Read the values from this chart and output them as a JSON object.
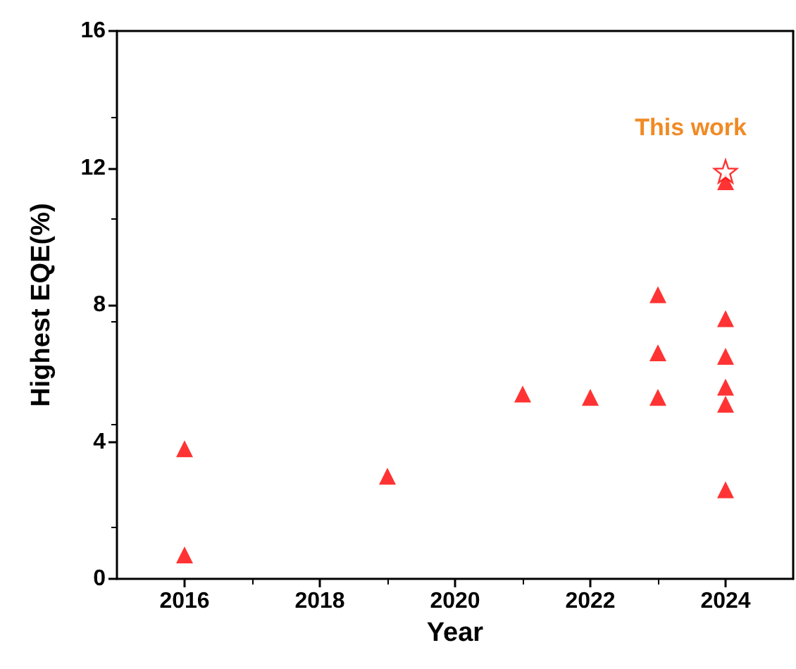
{
  "chart_data": {
    "type": "scatter",
    "xlabel": "Year",
    "ylabel": "Highest EQE(%)",
    "xlim": [
      2015,
      2025
    ],
    "xticks": [
      2016,
      2018,
      2020,
      2022,
      2024
    ],
    "ylim": [
      0,
      16
    ],
    "yticks": [
      0,
      4,
      8,
      12,
      16
    ],
    "grid": false,
    "series": [
      {
        "color": "#ff0000",
        "marker": "triangle",
        "x": [
          2016,
          2016,
          2019,
          2021,
          2022,
          2023,
          2023,
          2023,
          2024,
          2024,
          2024,
          2024,
          2024,
          2024
        ],
        "values": [
          3.8,
          0.7,
          3.0,
          5.4,
          5.3,
          8.3,
          6.6,
          5.3,
          11.6,
          7.6,
          6.5,
          5.6,
          5.1,
          2.6
        ]
      },
      {
        "color": "#ff0000",
        "marker": "star",
        "x": [
          2024
        ],
        "values": [
          11.9
        ]
      }
    ],
    "annotations": [
      "This work"
    ]
  }
}
